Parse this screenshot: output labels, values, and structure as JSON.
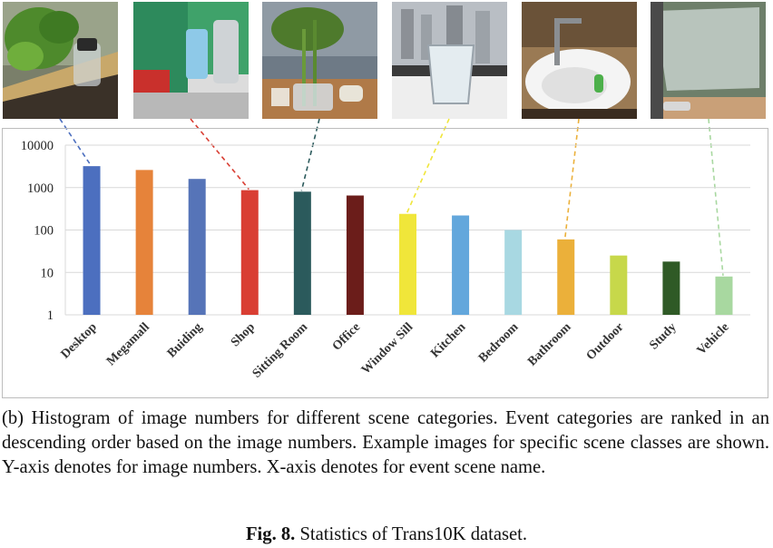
{
  "photos": [
    {
      "name": "desktop-photo",
      "scene": "Desktop"
    },
    {
      "name": "shop-photo",
      "scene": "Shop"
    },
    {
      "name": "sitting-room-photo",
      "scene": "Sitting Room"
    },
    {
      "name": "window-sill-photo",
      "scene": "Window Sill"
    },
    {
      "name": "bathroom-photo",
      "scene": "Bathroom"
    },
    {
      "name": "vehicle-photo",
      "scene": "Vehicle"
    }
  ],
  "chart_data": {
    "type": "bar",
    "scale": "log",
    "ylim": [
      1,
      10000
    ],
    "yticks": [
      "10000",
      "1000",
      "100",
      "10",
      "1"
    ],
    "grid": true,
    "categories": [
      "Desktop",
      "Megamall",
      "Buiding",
      "Shop",
      "Sitting Room",
      "Office",
      "Window Sill",
      "Kitchen",
      "Bedroom",
      "Bathroom",
      "Outdoor",
      "Study",
      "Vehicle"
    ],
    "values": [
      3200,
      2600,
      1600,
      870,
      800,
      650,
      240,
      220,
      100,
      60,
      25,
      18,
      8
    ],
    "colors": [
      "#4c6fbf",
      "#e6833a",
      "#5674b8",
      "#d93e33",
      "#2b5a5c",
      "#6b1d1a",
      "#f0e63a",
      "#63a7dc",
      "#a8d8e2",
      "#ebb03a",
      "#c7d84a",
      "#2f5a26",
      "#a8d8a0"
    ],
    "links": [
      {
        "scene": "Desktop",
        "color": "#4c6fbf"
      },
      {
        "scene": "Shop",
        "color": "#d93e33"
      },
      {
        "scene": "Sitting Room",
        "color": "#2b5a5c"
      },
      {
        "scene": "Window Sill",
        "color": "#f0e63a"
      },
      {
        "scene": "Bathroom",
        "color": "#ebb03a"
      },
      {
        "scene": "Vehicle",
        "color": "#a8d8a0"
      }
    ]
  },
  "caption": "(b) Histogram of image numbers for different scene categories. Event categories are ranked in an descending order based on the image numbers. Example images for specific scene classes are shown. Y-axis denotes for image numbers. X-axis denotes for event scene name.",
  "figure": {
    "label": "Fig. 8.",
    "text": " Statistics of Trans10K dataset."
  }
}
